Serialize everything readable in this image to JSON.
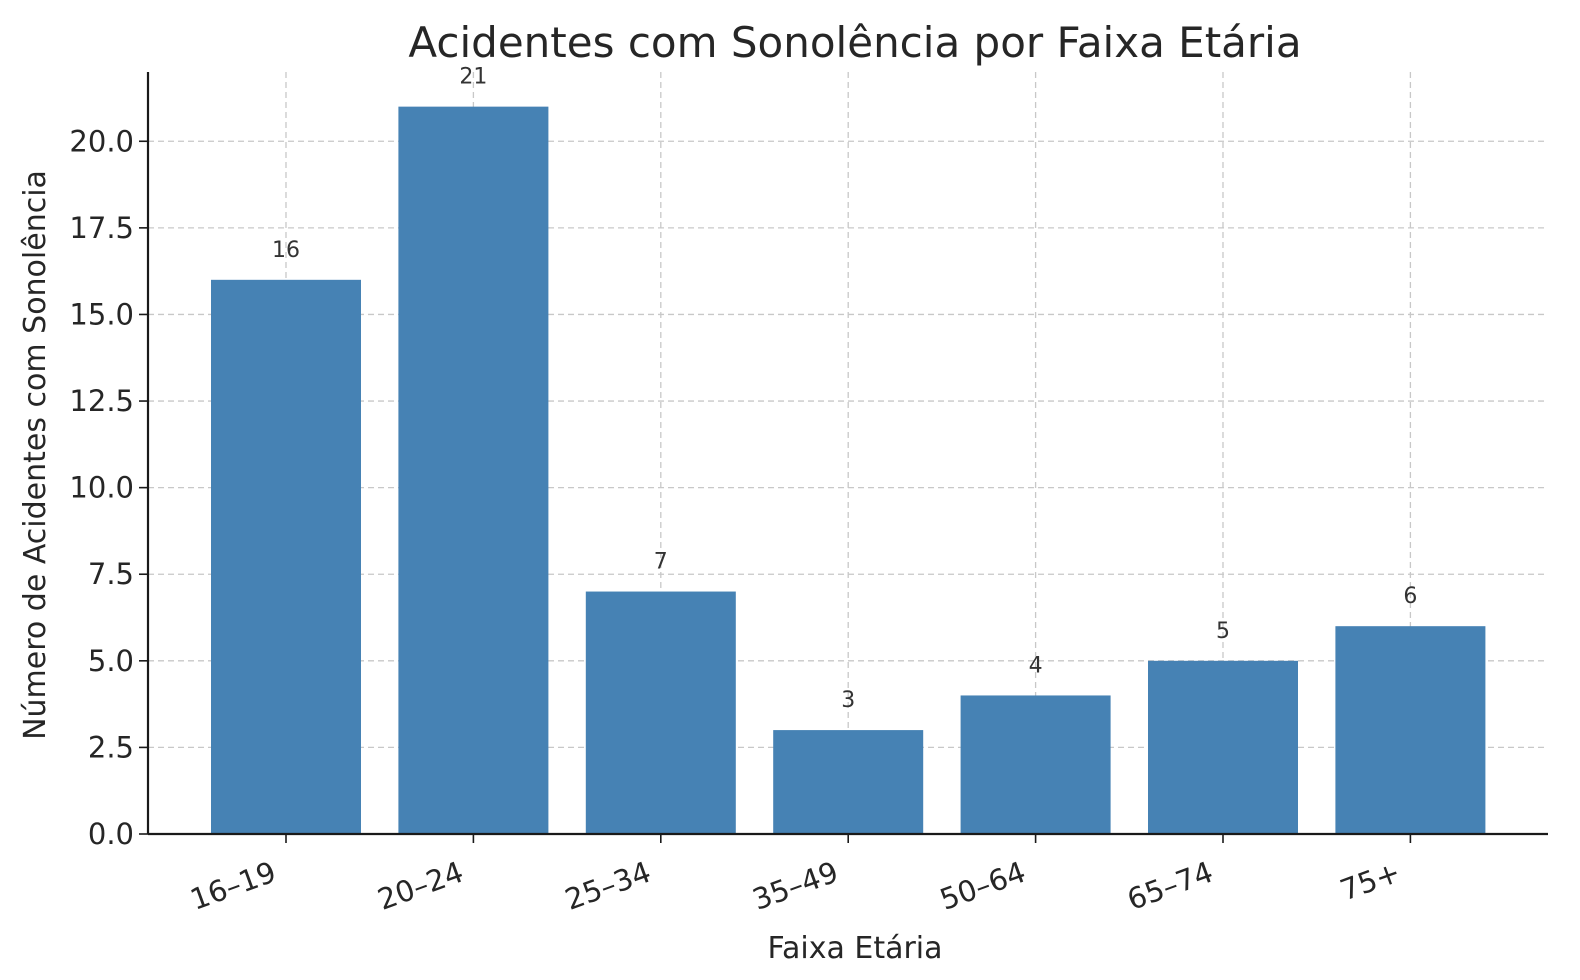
{
  "chart_data": {
    "type": "bar",
    "title": "Acidentes com Sonolência por Faixa Etária",
    "xlabel": "Faixa Etária",
    "ylabel": "Número de Acidentes com Sonolência",
    "categories": [
      "16–19",
      "20–24",
      "25–34",
      "35–49",
      "50–64",
      "65–74",
      "75+"
    ],
    "values": [
      16,
      21,
      7,
      3,
      4,
      5,
      6
    ],
    "value_labels": [
      "16",
      "21",
      "7",
      "3",
      "4",
      "5",
      "6"
    ],
    "ylim": [
      0,
      22
    ],
    "yticks": [
      0,
      2.5,
      5,
      7.5,
      10,
      12.5,
      15,
      17.5,
      20
    ],
    "ytick_labels": [
      "0.0",
      "2.5",
      "5.0",
      "7.5",
      "10.0",
      "12.5",
      "15.0",
      "17.5",
      "20.0"
    ],
    "grid": true,
    "bar_color": "#4682b4"
  }
}
